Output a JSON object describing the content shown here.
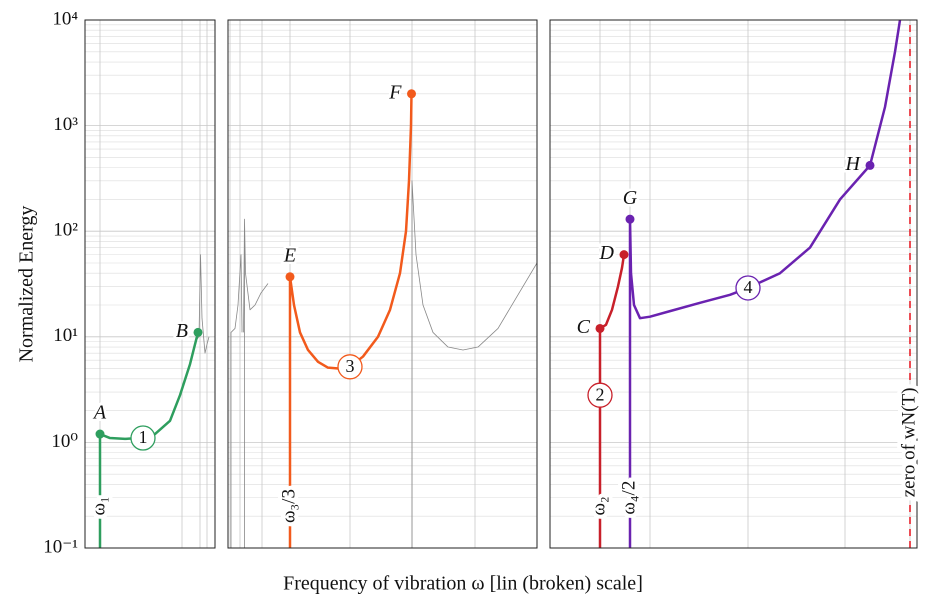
{
  "chart_data": {
    "type": "line",
    "log_y": true,
    "ylabel": "Normalized Energy",
    "xlabel": "Frequency of vibration ω [lin (broken) scale]",
    "ylim": [
      0.1,
      10000
    ],
    "yticks": [
      {
        "value": 0.1,
        "label": "10⁻¹"
      },
      {
        "value": 1,
        "label": "10⁰"
      },
      {
        "value": 10,
        "label": "10¹"
      },
      {
        "value": 100,
        "label": "10²"
      },
      {
        "value": 1000,
        "label": "10³"
      },
      {
        "value": 10000,
        "label": "10⁴"
      }
    ],
    "minor_yticks": [
      0.2,
      0.3,
      0.4,
      0.5,
      0.6,
      0.7,
      0.8,
      0.9,
      2,
      3,
      4,
      5,
      6,
      7,
      8,
      9,
      20,
      30,
      40,
      50,
      60,
      70,
      80,
      90,
      200,
      300,
      400,
      500,
      600,
      700,
      800,
      900,
      2000,
      3000,
      4000,
      5000,
      6000,
      7000,
      8000,
      9000
    ],
    "grid": true,
    "panels": [
      {
        "xlim": [
          0,
          130
        ],
        "xticks": [
          15,
          97,
          115,
          122
        ],
        "series": [
          {
            "color": "#888888",
            "width": 0.8,
            "x": [
              110,
              114,
              115.5,
              117,
              120,
              122,
              124
            ],
            "values": [
              9,
              10,
              60,
              15,
              7,
              8.5,
              10
            ]
          },
          {
            "color": "#2e9e5e",
            "width": 2.5,
            "x": [
              15,
              15,
              25,
              40,
              55,
              70,
              85,
              95,
              105,
              113
            ],
            "values": [
              0.1,
              1.2,
              1.1,
              1.08,
              1.1,
              1.2,
              1.6,
              2.8,
              5.5,
              11
            ]
          }
        ],
        "points": [
          {
            "label": "A",
            "x": 15,
            "y": 1.2,
            "color": "#2e9e5e",
            "side": "above"
          },
          {
            "label": "B",
            "x": 113,
            "y": 11,
            "color": "#2e9e5e",
            "side": "left"
          }
        ],
        "markers": [
          {
            "label": "1",
            "x": 58,
            "y": 1.1,
            "color": "#2e9e5e"
          }
        ],
        "frequency_labels": [
          {
            "label": "ω₁",
            "x": 15,
            "y": 0.25,
            "color": "#2e9e5e"
          }
        ]
      },
      {
        "xlim": [
          0,
          309
        ],
        "xticks": [
          2,
          12,
          34,
          62,
          122,
          184,
          247
        ],
        "series": [
          {
            "color": "#888888",
            "width": 0.8,
            "x": [
              3,
              3,
              7,
              10,
              13,
              14,
              14,
              null,
              15.5,
              16.5,
              16.5,
              null,
              16.5,
              17.5,
              22,
              27,
              33,
              40
            ],
            "values": [
              0.1,
              11,
              12,
              20,
              60,
              12,
              11,
              null,
              11,
              130,
              0.1,
              null,
              130,
              40,
              18,
              20,
              26,
              32
            ]
          },
          {
            "color": "#888888",
            "width": 0.8,
            "x": [
              184,
              184,
              188,
              195,
              205,
              220,
              235,
              250,
              270,
              290,
              309
            ],
            "values": [
              0.1,
              300,
              60,
              20,
              11,
              8,
              7.5,
              8,
              12,
              25,
              50
            ]
          },
          {
            "color": "#f25a1c",
            "width": 2.5,
            "x": [
              62,
              62,
              66,
              72,
              80,
              90,
              100,
              112,
              122,
              135,
              150,
              162,
              172,
              178,
              181,
              183,
              183.5
            ],
            "values": [
              0.1,
              37,
              20,
              11,
              7.5,
              5.8,
              5.1,
              5,
              5.2,
              6.5,
              10,
              18,
              40,
              100,
              300,
              1000,
              2000
            ]
          }
        ],
        "points": [
          {
            "label": "E",
            "x": 62,
            "y": 37,
            "color": "#f25a1c",
            "side": "above"
          },
          {
            "label": "F",
            "x": 183.5,
            "y": 2000,
            "color": "#f25a1c",
            "side": "left"
          }
        ],
        "markers": [
          {
            "label": "3",
            "x": 122,
            "y": 5.2,
            "color": "#f25a1c"
          }
        ],
        "frequency_labels": [
          {
            "label": "ω₃/3",
            "x": 62,
            "y": 0.25,
            "color": "#f25a1c"
          }
        ]
      },
      {
        "xlim": [
          0,
          367
        ],
        "xticks": [
          50,
          80,
          100,
          198,
          295,
          360
        ],
        "series": [
          {
            "color": "#c8202a",
            "width": 2.5,
            "x": [
              50,
              50,
              56,
              62,
              68,
              72,
              74
            ],
            "values": [
              0.1,
              12,
              13,
              18,
              30,
              45,
              60
            ]
          },
          {
            "color": "#6a22b0",
            "width": 2.5,
            "x": [
              80,
              80,
              81,
              84,
              90,
              100,
              120,
              150,
              180,
              198,
              230,
              260,
              290,
              320,
              335,
              345,
              350
            ],
            "values": [
              0.1,
              130,
              40,
              20,
              15,
              15.5,
              17.5,
              21,
              25,
              29,
              40,
              70,
              200,
              420,
              1500,
              5000,
              10000
            ]
          },
          {
            "color": "#e8202a",
            "width": 1.6,
            "dash": true,
            "x": [
              360,
              360
            ],
            "values": [
              0.1,
              10000
            ]
          }
        ],
        "points": [
          {
            "label": "C",
            "x": 50,
            "y": 12,
            "color": "#c8202a",
            "side": "left"
          },
          {
            "label": "D",
            "x": 74,
            "y": 60,
            "color": "#c8202a",
            "side": "left"
          },
          {
            "label": "G",
            "x": 80,
            "y": 130,
            "color": "#6a22b0",
            "side": "above"
          },
          {
            "label": "H",
            "x": 320,
            "y": 420,
            "color": "#6a22b0",
            "side": "left"
          }
        ],
        "markers": [
          {
            "label": "2",
            "x": 50,
            "y": 2.8,
            "color": "#c8202a"
          },
          {
            "label": "4",
            "x": 198,
            "y": 29,
            "color": "#6a22b0"
          }
        ],
        "frequency_labels": [
          {
            "label": "ω₂",
            "x": 50,
            "y": 0.25,
            "color": "#c8202a"
          },
          {
            "label": "ω₄/2",
            "x": 80,
            "y": 0.3,
            "color": "#6a22b0"
          },
          {
            "label": "zero of wN(T)",
            "x": 360,
            "y": 1,
            "color": "#e8202a"
          }
        ]
      }
    ]
  }
}
